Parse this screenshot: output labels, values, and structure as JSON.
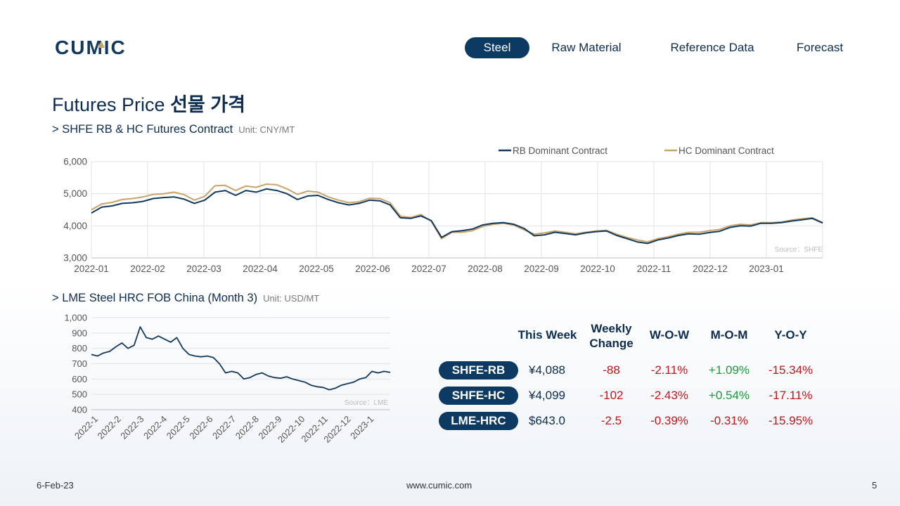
{
  "brand": {
    "logo_text": "CUMIC"
  },
  "nav": {
    "tabs": [
      {
        "label": "Steel",
        "active": true
      },
      {
        "label": "Raw Material",
        "active": false
      },
      {
        "label": "Reference Data",
        "active": false
      },
      {
        "label": "Forecast",
        "active": false
      }
    ]
  },
  "page": {
    "title_en": "Futures Price",
    "title_ko": "선물 가격"
  },
  "section1": {
    "title": "> SHFE RB & HC Futures Contract",
    "unit": "Unit: CNY/MT"
  },
  "section2": {
    "title": "> LME Steel HRC FOB China (Month 3)",
    "unit": "Unit: USD/MT"
  },
  "chart_data": [
    {
      "type": "line",
      "source": "Source：SHFE",
      "ylim": [
        3000,
        6000
      ],
      "yticks": [
        "3,000",
        "4,000",
        "5,000",
        "6,000"
      ],
      "xticks": [
        "2022-01",
        "2022-02",
        "2022-03",
        "2022-04",
        "2022-05",
        "2022-06",
        "2022-07",
        "2022-08",
        "2022-09",
        "2022-10",
        "2022-11",
        "2022-12",
        "2023-01"
      ],
      "grid": true,
      "legend_position": "top-right",
      "series": [
        {
          "name": "RB Dominant Contract",
          "color": "#12395e",
          "values": [
            4400,
            4580,
            4620,
            4700,
            4720,
            4760,
            4850,
            4880,
            4900,
            4830,
            4700,
            4800,
            5050,
            5100,
            4950,
            5100,
            5050,
            5150,
            5100,
            5000,
            4820,
            4930,
            4950,
            4820,
            4720,
            4650,
            4700,
            4800,
            4780,
            4650,
            4250,
            4230,
            4310,
            4160,
            3640,
            3820,
            3850,
            3900,
            4030,
            4080,
            4100,
            4050,
            3920,
            3690,
            3720,
            3800,
            3760,
            3720,
            3780,
            3820,
            3840,
            3700,
            3600,
            3500,
            3450,
            3560,
            3620,
            3700,
            3750,
            3740,
            3790,
            3830,
            3950,
            4000,
            3990,
            4080,
            4080,
            4100,
            4150,
            4190,
            4230,
            4088
          ]
        },
        {
          "name": "HC Dominant Contract",
          "color": "#c9a46a",
          "values": [
            4500,
            4680,
            4730,
            4820,
            4850,
            4900,
            4980,
            5000,
            5050,
            4970,
            4800,
            4920,
            5250,
            5260,
            5100,
            5240,
            5200,
            5300,
            5280,
            5150,
            4980,
            5080,
            5050,
            4900,
            4800,
            4720,
            4750,
            4860,
            4850,
            4720,
            4300,
            4260,
            4350,
            4140,
            3600,
            3800,
            3800,
            3850,
            3980,
            4050,
            4080,
            4020,
            3880,
            3740,
            3780,
            3840,
            3800,
            3750,
            3800,
            3840,
            3860,
            3740,
            3640,
            3560,
            3500,
            3600,
            3660,
            3740,
            3800,
            3800,
            3850,
            3890,
            4000,
            4050,
            4030,
            4100,
            4100,
            4120,
            4180,
            4220,
            4250,
            4099
          ]
        }
      ]
    },
    {
      "type": "line",
      "source": "Source：LME",
      "ylim": [
        400,
        1000
      ],
      "yticks": [
        "400",
        "500",
        "600",
        "700",
        "800",
        "900",
        "1,000"
      ],
      "xticks": [
        "2022-1",
        "2022-2",
        "2022-3",
        "2022-4",
        "2022-5",
        "2022-6",
        "2022-7",
        "2022-8",
        "2022-9",
        "2022-10",
        "2022-11",
        "2022-12",
        "2023-1"
      ],
      "grid": true,
      "series": [
        {
          "name": "",
          "color": "#12395e",
          "values": [
            760,
            750,
            770,
            780,
            810,
            835,
            800,
            820,
            940,
            870,
            860,
            880,
            860,
            840,
            870,
            800,
            760,
            750,
            745,
            750,
            740,
            700,
            640,
            650,
            640,
            600,
            610,
            630,
            640,
            620,
            610,
            605,
            615,
            600,
            590,
            580,
            560,
            550,
            545,
            530,
            540,
            560,
            570,
            580,
            600,
            610,
            650,
            640,
            650,
            643
          ]
        }
      ]
    }
  ],
  "table": {
    "headers": {
      "this_week": "This Week",
      "weekly_change_1": "Weekly",
      "weekly_change_2": "Change",
      "wow": "W-O-W",
      "mom": "M-O-M",
      "yoy": "Y-O-Y"
    },
    "rows": [
      {
        "label": "SHFE-RB",
        "this_week": "¥4,088",
        "weekly_change": "-88",
        "wow": "-2.11%",
        "mom": "+1.09%",
        "yoy": "-15.34%"
      },
      {
        "label": "SHFE-HC",
        "this_week": "¥4,099",
        "weekly_change": "-102",
        "wow": "-2.43%",
        "mom": "+0.54%",
        "yoy": "-17.11%"
      },
      {
        "label": "LME-HRC",
        "this_week": "$643.0",
        "weekly_change": "-2.5",
        "wow": "-0.39%",
        "mom": "-0.31%",
        "yoy": "-15.95%"
      }
    ]
  },
  "footer": {
    "date": "6-Feb-23",
    "website": "www.cumic.com",
    "page_number": "5"
  }
}
